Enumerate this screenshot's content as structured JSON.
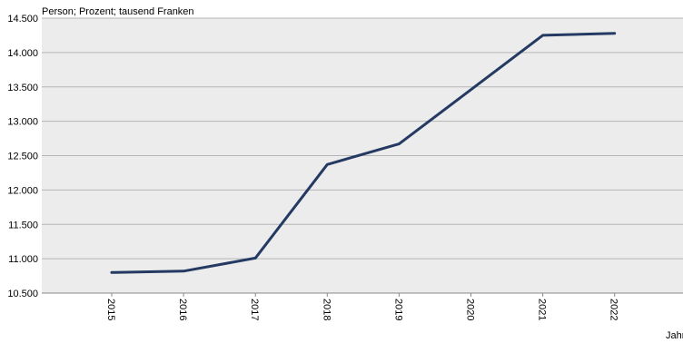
{
  "chart_data": {
    "type": "line",
    "ylabel": "Person; Prozent; tausend Franken",
    "xlabel": "Jahr",
    "categories": [
      "2015",
      "2016",
      "2017",
      "2018",
      "2019",
      "2020",
      "2021",
      "2022"
    ],
    "series": [
      {
        "values": [
          10800,
          10820,
          11010,
          12370,
          12670,
          13460,
          14250,
          14280
        ],
        "color": "#243a63"
      }
    ],
    "ylim": [
      10500,
      14500
    ],
    "yticks": [
      10500,
      11000,
      11500,
      12000,
      12500,
      13000,
      13500,
      14000,
      14500
    ],
    "ytick_labels": [
      "10.500",
      "11.000",
      "11.500",
      "12.000",
      "12.500",
      "13.000",
      "13.500",
      "14.000",
      "14.500"
    ],
    "grid": true,
    "plot_background": "#ececec",
    "grid_color": "#b5b5b5"
  }
}
